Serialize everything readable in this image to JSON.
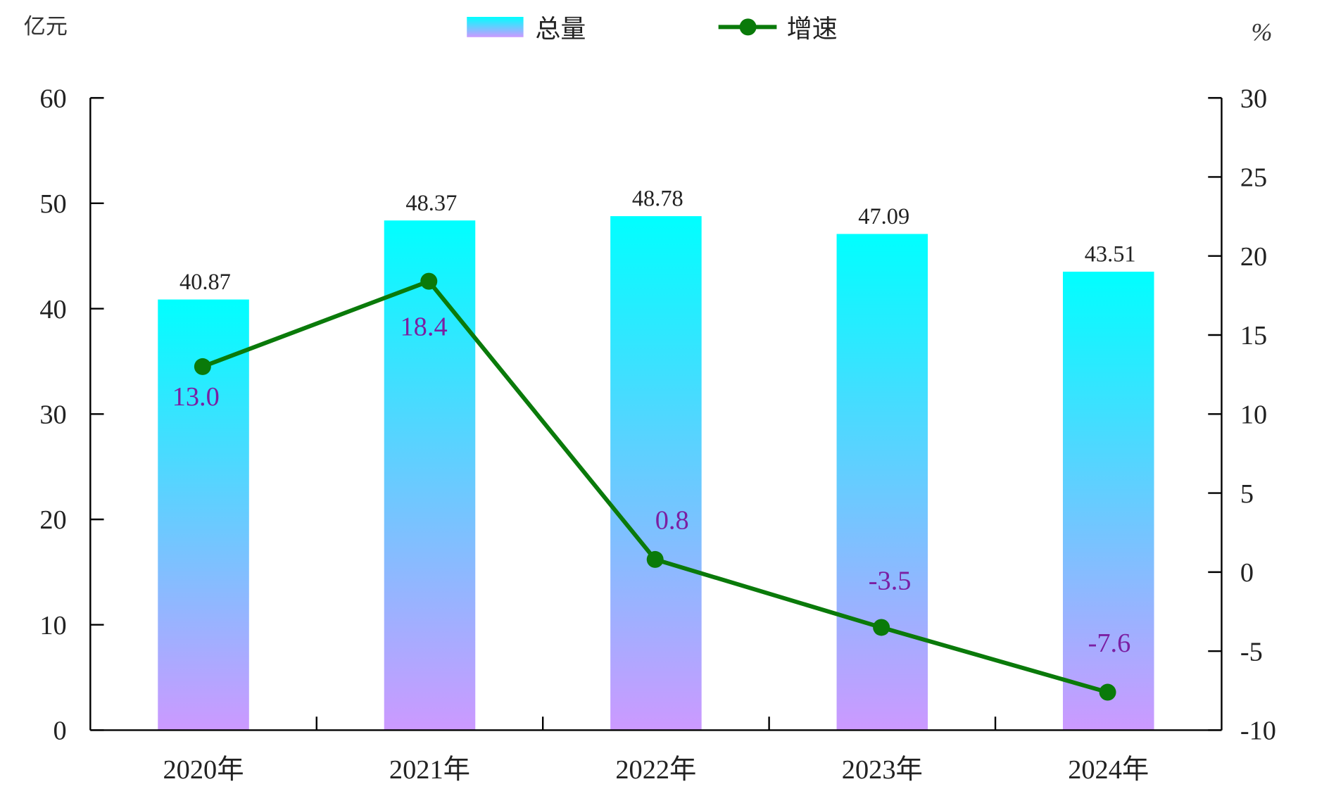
{
  "chart_data": {
    "type": "bar+line",
    "categories": [
      "2020年",
      "2021年",
      "2022年",
      "2023年",
      "2024年"
    ],
    "left_axis": {
      "unit": "亿元",
      "ylim": [
        0,
        60
      ],
      "ticks": [
        0,
        10,
        20,
        30,
        40,
        50,
        60
      ]
    },
    "right_axis": {
      "unit": "%",
      "ylim": [
        -10,
        30
      ],
      "ticks": [
        -10,
        -5,
        0,
        5,
        10,
        15,
        20,
        25,
        30
      ]
    },
    "series": [
      {
        "name": "总量",
        "type": "bar",
        "axis": "left",
        "values": [
          40.87,
          48.37,
          48.78,
          47.09,
          43.51
        ],
        "labels": [
          "40.87",
          "48.37",
          "48.78",
          "47.09",
          "43.51"
        ],
        "color_top": "#00FFFF",
        "color_bottom": "#CC99FF"
      },
      {
        "name": "增速",
        "type": "line",
        "axis": "right",
        "values": [
          13.0,
          18.4,
          0.8,
          -3.5,
          -7.6
        ],
        "labels": [
          "13.0",
          "18.4",
          "0.8",
          "-3.5",
          "-7.6"
        ],
        "color": "#0A7A0A",
        "label_color": "#7B1FA2"
      }
    ],
    "legend_placement": "top-center",
    "grid": false
  }
}
